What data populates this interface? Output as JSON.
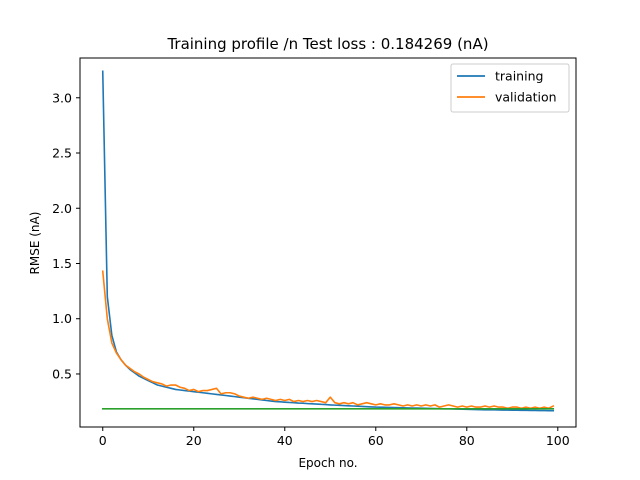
{
  "chart_data": {
    "type": "line",
    "title": "Training profile /n Test loss : 0.184269 (nA)",
    "xlabel": "Epoch no.",
    "ylabel": "RMSE (nA)",
    "xlim": [
      -5,
      104
    ],
    "ylim": [
      0.02,
      3.36
    ],
    "xticks": [
      0,
      20,
      40,
      60,
      80,
      100
    ],
    "yticks": [
      0.5,
      1.0,
      1.5,
      2.0,
      2.5,
      3.0
    ],
    "xtick_labels": [
      "0",
      "20",
      "40",
      "60",
      "80",
      "100"
    ],
    "ytick_labels": [
      "0.5",
      "1.0",
      "1.5",
      "2.0",
      "2.5",
      "3.0"
    ],
    "grid": false,
    "legend_position": "top-right",
    "series": [
      {
        "name": "training",
        "color": "#1f77b4",
        "x": [
          0,
          1,
          2,
          3,
          4,
          5,
          6,
          7,
          8,
          9,
          10,
          11,
          12,
          13,
          14,
          15,
          16,
          17,
          18,
          19,
          20,
          21,
          22,
          23,
          24,
          25,
          26,
          27,
          28,
          29,
          30,
          31,
          32,
          33,
          34,
          35,
          36,
          37,
          38,
          39,
          40,
          41,
          42,
          43,
          44,
          45,
          46,
          47,
          48,
          49,
          50,
          51,
          52,
          53,
          54,
          55,
          56,
          57,
          58,
          59,
          60,
          61,
          62,
          63,
          64,
          65,
          66,
          67,
          68,
          69,
          70,
          71,
          72,
          73,
          74,
          75,
          76,
          77,
          78,
          79,
          80,
          81,
          82,
          83,
          84,
          85,
          86,
          87,
          88,
          89,
          90,
          91,
          92,
          93,
          94,
          95,
          96,
          97,
          98,
          99
        ],
        "values": [
          3.24,
          1.2,
          0.85,
          0.7,
          0.63,
          0.58,
          0.54,
          0.51,
          0.48,
          0.46,
          0.44,
          0.42,
          0.4,
          0.39,
          0.38,
          0.37,
          0.36,
          0.355,
          0.35,
          0.345,
          0.34,
          0.335,
          0.33,
          0.325,
          0.32,
          0.315,
          0.31,
          0.305,
          0.3,
          0.295,
          0.29,
          0.285,
          0.28,
          0.275,
          0.27,
          0.265,
          0.26,
          0.255,
          0.25,
          0.248,
          0.245,
          0.242,
          0.24,
          0.237,
          0.235,
          0.232,
          0.23,
          0.228,
          0.225,
          0.223,
          0.22,
          0.218,
          0.216,
          0.214,
          0.212,
          0.21,
          0.208,
          0.206,
          0.204,
          0.202,
          0.2,
          0.199,
          0.198,
          0.197,
          0.196,
          0.195,
          0.194,
          0.193,
          0.192,
          0.191,
          0.19,
          0.189,
          0.188,
          0.187,
          0.186,
          0.185,
          0.184,
          0.183,
          0.182,
          0.181,
          0.18,
          0.179,
          0.178,
          0.177,
          0.176,
          0.175,
          0.175,
          0.174,
          0.173,
          0.173,
          0.172,
          0.172,
          0.171,
          0.171,
          0.17,
          0.17,
          0.169,
          0.169,
          0.168,
          0.168
        ]
      },
      {
        "name": "validation",
        "color": "#ff7f0e",
        "x": [
          0,
          1,
          2,
          3,
          4,
          5,
          6,
          7,
          8,
          9,
          10,
          11,
          12,
          13,
          14,
          15,
          16,
          17,
          18,
          19,
          20,
          21,
          22,
          23,
          24,
          25,
          26,
          27,
          28,
          29,
          30,
          31,
          32,
          33,
          34,
          35,
          36,
          37,
          38,
          39,
          40,
          41,
          42,
          43,
          44,
          45,
          46,
          47,
          48,
          49,
          50,
          51,
          52,
          53,
          54,
          55,
          56,
          57,
          58,
          59,
          60,
          61,
          62,
          63,
          64,
          65,
          66,
          67,
          68,
          69,
          70,
          71,
          72,
          73,
          74,
          75,
          76,
          77,
          78,
          79,
          80,
          81,
          82,
          83,
          84,
          85,
          86,
          87,
          88,
          89,
          90,
          91,
          92,
          93,
          94,
          95,
          96,
          97,
          98,
          99
        ],
        "values": [
          1.43,
          1.0,
          0.78,
          0.69,
          0.63,
          0.58,
          0.55,
          0.52,
          0.5,
          0.47,
          0.45,
          0.43,
          0.42,
          0.41,
          0.39,
          0.4,
          0.4,
          0.38,
          0.37,
          0.35,
          0.36,
          0.34,
          0.35,
          0.35,
          0.36,
          0.37,
          0.32,
          0.33,
          0.33,
          0.32,
          0.3,
          0.29,
          0.28,
          0.29,
          0.28,
          0.27,
          0.28,
          0.27,
          0.26,
          0.27,
          0.26,
          0.27,
          0.25,
          0.26,
          0.25,
          0.26,
          0.25,
          0.26,
          0.25,
          0.24,
          0.29,
          0.24,
          0.23,
          0.24,
          0.23,
          0.24,
          0.22,
          0.23,
          0.24,
          0.23,
          0.22,
          0.23,
          0.22,
          0.22,
          0.23,
          0.22,
          0.21,
          0.22,
          0.21,
          0.22,
          0.21,
          0.22,
          0.21,
          0.22,
          0.2,
          0.21,
          0.22,
          0.21,
          0.2,
          0.21,
          0.2,
          0.21,
          0.2,
          0.2,
          0.21,
          0.2,
          0.21,
          0.2,
          0.2,
          0.19,
          0.2,
          0.2,
          0.19,
          0.2,
          0.19,
          0.2,
          0.19,
          0.2,
          0.19,
          0.21
        ]
      },
      {
        "name": "",
        "color": "#2ca02c",
        "x": [
          0,
          99
        ],
        "values": [
          0.184269,
          0.184269
        ]
      }
    ]
  }
}
